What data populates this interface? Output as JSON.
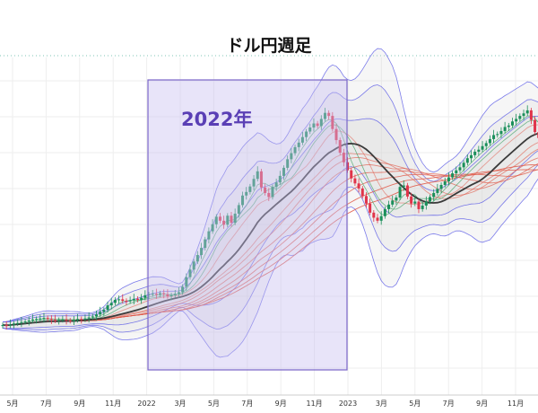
{
  "chart_data": {
    "type": "candlestick",
    "title": "ドル円週足",
    "x_tick_labels": [
      "5月",
      "7月",
      "9月",
      "11月",
      "2022",
      "3月",
      "5月",
      "7月",
      "9月",
      "11月",
      "2023",
      "3月",
      "5月",
      "7月",
      "9月",
      "11月"
    ],
    "x_range": [
      "2021-04",
      "2023-12"
    ],
    "grid": true,
    "legend": "none",
    "highlight": {
      "label": "2022年",
      "from": "2022-01",
      "to": "2022-12",
      "fill": "#c9bff0",
      "stroke": "#7b66c9",
      "text_color": "#5a3fb5"
    },
    "colors": {
      "up": "#1a8f5a",
      "down": "#e0344a",
      "band_line": "#5a5ae6",
      "band_fill": "#d8d8d8",
      "ma_main": "#3a3a3a",
      "ribbon": "#e05a4a"
    },
    "series": [
      {
        "name": "",
        "weekly_close": [
          108.9,
          108.8,
          109.0,
          109.2,
          109.3,
          109.5,
          109.6,
          109.8,
          110.0,
          110.1,
          110.2,
          110.3,
          110.1,
          109.9,
          109.8,
          109.9,
          110.0,
          109.8,
          109.7,
          109.9,
          110.1,
          110.0,
          110.2,
          110.4,
          110.6,
          111.0,
          111.5,
          111.9,
          112.8,
          113.3,
          113.9,
          114.0,
          113.7,
          113.6,
          113.8,
          114.1,
          113.9,
          114.3,
          114.8,
          115.0,
          115.1,
          114.9,
          115.2,
          115.0,
          114.6,
          114.8,
          115.1,
          115.4,
          116.5,
          118.4,
          119.9,
          121.5,
          122.8,
          124.2,
          125.9,
          127.5,
          128.9,
          130.4,
          129.6,
          128.8,
          130.6,
          129.2,
          131.0,
          132.7,
          134.6,
          135.3,
          136.4,
          137.9,
          139.4,
          136.2,
          135.1,
          134.3,
          136.3,
          137.2,
          138.5,
          140.1,
          141.8,
          143.0,
          144.2,
          145.1,
          146.2,
          147.3,
          148.1,
          148.9,
          148.4,
          149.8,
          151.0,
          150.4,
          147.8,
          145.6,
          143.1,
          141.2,
          139.6,
          138.0,
          137.0,
          136.0,
          134.5,
          133.0,
          131.2,
          130.2,
          129.6,
          130.5,
          131.9,
          132.8,
          133.6,
          134.2,
          136.3,
          136.6,
          134.4,
          133.0,
          133.4,
          131.9,
          132.6,
          133.4,
          134.3,
          135.1,
          135.9,
          136.7,
          137.4,
          138.2,
          139.0,
          139.6,
          140.2,
          141.1,
          142.0,
          142.6,
          143.3,
          143.7,
          144.4,
          145.0,
          145.8,
          146.6,
          146.8,
          147.4,
          148.2,
          148.5,
          149.3,
          149.8,
          150.4,
          150.9,
          151.5,
          149.6,
          147.2,
          146.0,
          144.6,
          143.0
        ]
      }
    ]
  }
}
